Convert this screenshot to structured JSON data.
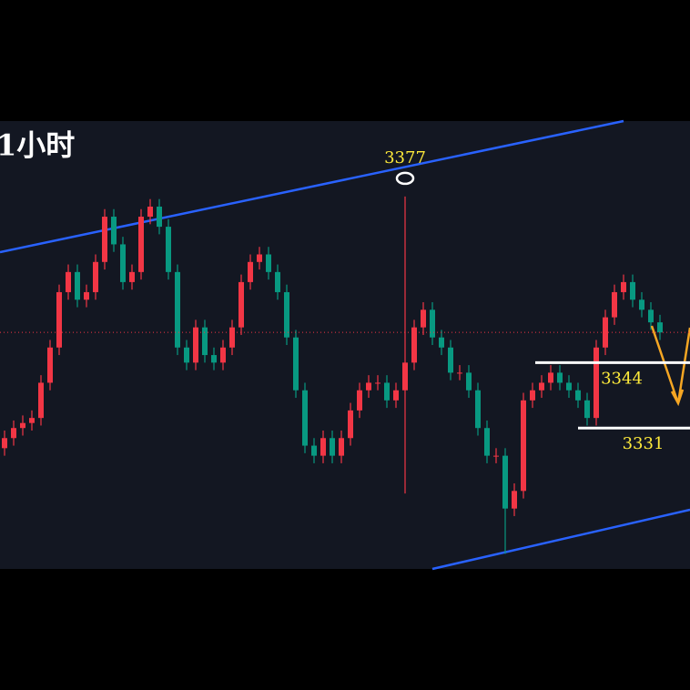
{
  "chart_data": {
    "type": "candlestick",
    "title": "1小时",
    "open": [
      3327,
      3329,
      3331,
      3332,
      3333,
      3340,
      3347,
      3358,
      3362,
      3356.5,
      3358,
      3364,
      3373,
      3367.5,
      3360,
      3362,
      3373,
      3375,
      3371,
      3362,
      3347,
      3344,
      3351,
      3345.5,
      3344,
      3347,
      3351,
      3360,
      3364,
      3365.5,
      3362,
      3358,
      3349,
      3338.5,
      3327.5,
      3325.5,
      3329,
      3325.5,
      3329,
      3334.5,
      3338.5,
      3340,
      3340,
      3336.5,
      3338.5,
      3344,
      3351,
      3354.5,
      3349,
      3347,
      3342,
      3342,
      3338.5,
      3331,
      3325.5,
      3325.5,
      3315,
      3318.5,
      3336.5,
      3338.5,
      3340,
      3342,
      3340,
      3338.5,
      3336.5,
      3333,
      3347,
      3353,
      3358,
      3360,
      3356.5,
      3354.5,
      3352
    ],
    "high": [
      3330.5,
      3332.5,
      3333.5,
      3334.5,
      3341.5,
      3348.5,
      3359.5,
      3363.5,
      3363.5,
      3359.5,
      3365.5,
      3374.5,
      3374.5,
      3369,
      3363.5,
      3374.5,
      3376.5,
      3376.5,
      3372.5,
      3363.5,
      3348.5,
      3352.5,
      3352.5,
      3347,
      3348.5,
      3352.5,
      3361.5,
      3365.5,
      3367,
      3367,
      3363.5,
      3359.5,
      3350.5,
      3340,
      3329,
      3330.5,
      3330.5,
      3330.5,
      3336,
      3340,
      3341.5,
      3341.5,
      3341.5,
      3340,
      3377,
      3352.5,
      3356,
      3356,
      3350.5,
      3348.5,
      3343.5,
      3343.5,
      3340,
      3332.5,
      3327,
      3327,
      3320,
      3338,
      3340,
      3341.5,
      3343.5,
      3343.5,
      3341.5,
      3340,
      3338,
      3348.5,
      3354.5,
      3359.5,
      3361.5,
      3361.5,
      3358,
      3356,
      3353.5
    ],
    "low": [
      3325.5,
      3327.5,
      3329.5,
      3330.5,
      3331.5,
      3338.5,
      3345.5,
      3356.5,
      3355,
      3355,
      3356.5,
      3362.5,
      3366,
      3358.5,
      3358.5,
      3360.5,
      3371.5,
      3369.5,
      3360.5,
      3345.5,
      3342.5,
      3342.5,
      3344,
      3342.5,
      3342.5,
      3345.5,
      3349.5,
      3358.5,
      3362.5,
      3360.5,
      3356.5,
      3347.5,
      3337,
      3326,
      3324,
      3324,
      3324,
      3324,
      3327.5,
      3333,
      3337,
      3338.5,
      3335,
      3335,
      3318,
      3342.5,
      3349.5,
      3347.5,
      3345.5,
      3340.5,
      3340.5,
      3337,
      3329.5,
      3324,
      3324,
      3306,
      3313.5,
      3317,
      3335,
      3337,
      3338.5,
      3338.5,
      3337,
      3335,
      3331.5,
      3331.5,
      3345.5,
      3351.5,
      3356.5,
      3355,
      3353,
      3350.5,
      3348.5
    ],
    "close": [
      3329,
      3331,
      3332,
      3333,
      3340,
      3347,
      3358,
      3362,
      3356.5,
      3358,
      3364,
      3373,
      3367.5,
      3360,
      3362,
      3373,
      3375,
      3371,
      3362,
      3347,
      3344,
      3351,
      3345.5,
      3344,
      3347,
      3351,
      3360,
      3364,
      3365.5,
      3362,
      3358,
      3349,
      3338.5,
      3327.5,
      3325.5,
      3329,
      3325.5,
      3329,
      3334.5,
      3338.5,
      3340,
      3340,
      3336.5,
      3338.5,
      3344,
      3351,
      3354.5,
      3349,
      3347,
      3342,
      3342,
      3338.5,
      3331,
      3325.5,
      3325.5,
      3315,
      3318.5,
      3336.5,
      3338.5,
      3340,
      3342,
      3340,
      3338.5,
      3336.5,
      3333,
      3347,
      3353,
      3358,
      3360,
      3356.5,
      3354.5,
      3352,
      3350
    ],
    "up_color": "#f23645",
    "down_color": "#089981",
    "ylim": [
      3303,
      3392
    ],
    "peak": 3377,
    "levels": [
      3344,
      3331
    ]
  }
}
